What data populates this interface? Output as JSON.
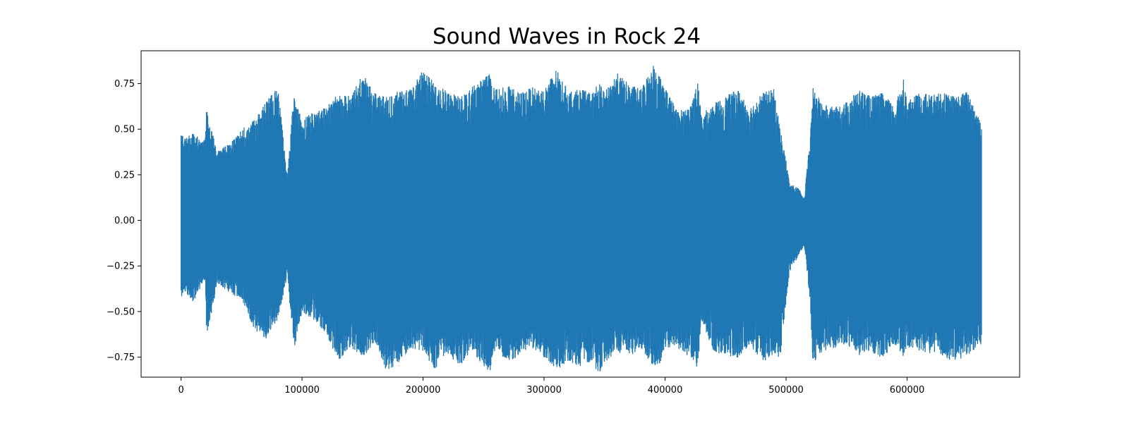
{
  "chart_data": {
    "type": "line",
    "title": "Sound Waves in Rock 24",
    "xlabel": "",
    "ylabel": "",
    "xlim": [
      -33000,
      693000
    ],
    "ylim": [
      -0.86,
      0.93
    ],
    "grid": false,
    "legend": "none",
    "x_ticks": [
      0,
      100000,
      200000,
      300000,
      400000,
      500000,
      600000
    ],
    "x_tick_labels": [
      "0",
      "100000",
      "200000",
      "300000",
      "400000",
      "500000",
      "600000"
    ],
    "y_ticks": [
      -0.75,
      -0.5,
      -0.25,
      0.0,
      0.25,
      0.5,
      0.75
    ],
    "y_tick_labels": [
      "−0.75",
      "−0.50",
      "−0.25",
      "0.00",
      "0.25",
      "0.50",
      "0.75"
    ],
    "colors": {
      "series": "#1f77b4",
      "axes": "#000000",
      "background": "#ffffff"
    },
    "series": [
      {
        "sample_count": 661500,
        "envelope_x": [
          0,
          2000,
          10000,
          20000,
          21000,
          30000,
          40000,
          50000,
          60000,
          70000,
          80000,
          88000,
          93000,
          100000,
          110000,
          120000,
          130000,
          140000,
          150000,
          160000,
          170000,
          180000,
          190000,
          200000,
          210000,
          220000,
          230000,
          240000,
          255000,
          260000,
          270000,
          280000,
          290000,
          300000,
          310000,
          320000,
          330000,
          340000,
          345000,
          350000,
          360000,
          370000,
          380000,
          390000,
          395000,
          400000,
          410000,
          420000,
          427000,
          430000,
          440000,
          450000,
          460000,
          470000,
          480000,
          490000,
          495000,
          500000,
          503000,
          510000,
          515000,
          520000,
          522000,
          530000,
          540000,
          550000,
          560000,
          570000,
          580000,
          590000,
          597000,
          600000,
          610000,
          620000,
          630000,
          640000,
          650000,
          661500
        ],
        "envelope_max": [
          0.53,
          0.45,
          0.48,
          0.44,
          0.61,
          0.38,
          0.42,
          0.5,
          0.55,
          0.65,
          0.73,
          0.25,
          0.68,
          0.55,
          0.6,
          0.62,
          0.7,
          0.68,
          0.81,
          0.7,
          0.68,
          0.71,
          0.72,
          0.83,
          0.75,
          0.71,
          0.68,
          0.73,
          0.81,
          0.72,
          0.74,
          0.7,
          0.73,
          0.72,
          0.83,
          0.71,
          0.72,
          0.7,
          0.76,
          0.7,
          0.81,
          0.75,
          0.72,
          0.86,
          0.8,
          0.74,
          0.6,
          0.62,
          0.76,
          0.58,
          0.64,
          0.68,
          0.72,
          0.62,
          0.7,
          0.72,
          0.51,
          0.33,
          0.2,
          0.18,
          0.12,
          0.47,
          0.73,
          0.64,
          0.62,
          0.65,
          0.72,
          0.68,
          0.7,
          0.62,
          0.79,
          0.65,
          0.7,
          0.69,
          0.7,
          0.68,
          0.71,
          0.54
        ],
        "envelope_min": [
          -0.47,
          -0.38,
          -0.45,
          -0.32,
          -0.64,
          -0.35,
          -0.4,
          -0.43,
          -0.6,
          -0.65,
          -0.55,
          -0.3,
          -0.73,
          -0.5,
          -0.55,
          -0.63,
          -0.77,
          -0.7,
          -0.75,
          -0.68,
          -0.83,
          -0.78,
          -0.7,
          -0.72,
          -0.82,
          -0.73,
          -0.8,
          -0.72,
          -0.84,
          -0.7,
          -0.78,
          -0.74,
          -0.7,
          -0.75,
          -0.82,
          -0.78,
          -0.8,
          -0.77,
          -0.85,
          -0.78,
          -0.72,
          -0.75,
          -0.7,
          -0.8,
          -0.81,
          -0.7,
          -0.7,
          -0.75,
          -0.81,
          -0.55,
          -0.72,
          -0.74,
          -0.76,
          -0.68,
          -0.78,
          -0.74,
          -0.76,
          -0.45,
          -0.28,
          -0.2,
          -0.14,
          -0.45,
          -0.79,
          -0.72,
          -0.7,
          -0.68,
          -0.74,
          -0.72,
          -0.76,
          -0.68,
          -0.76,
          -0.7,
          -0.72,
          -0.73,
          -0.75,
          -0.78,
          -0.74,
          -0.68
        ]
      }
    ]
  }
}
